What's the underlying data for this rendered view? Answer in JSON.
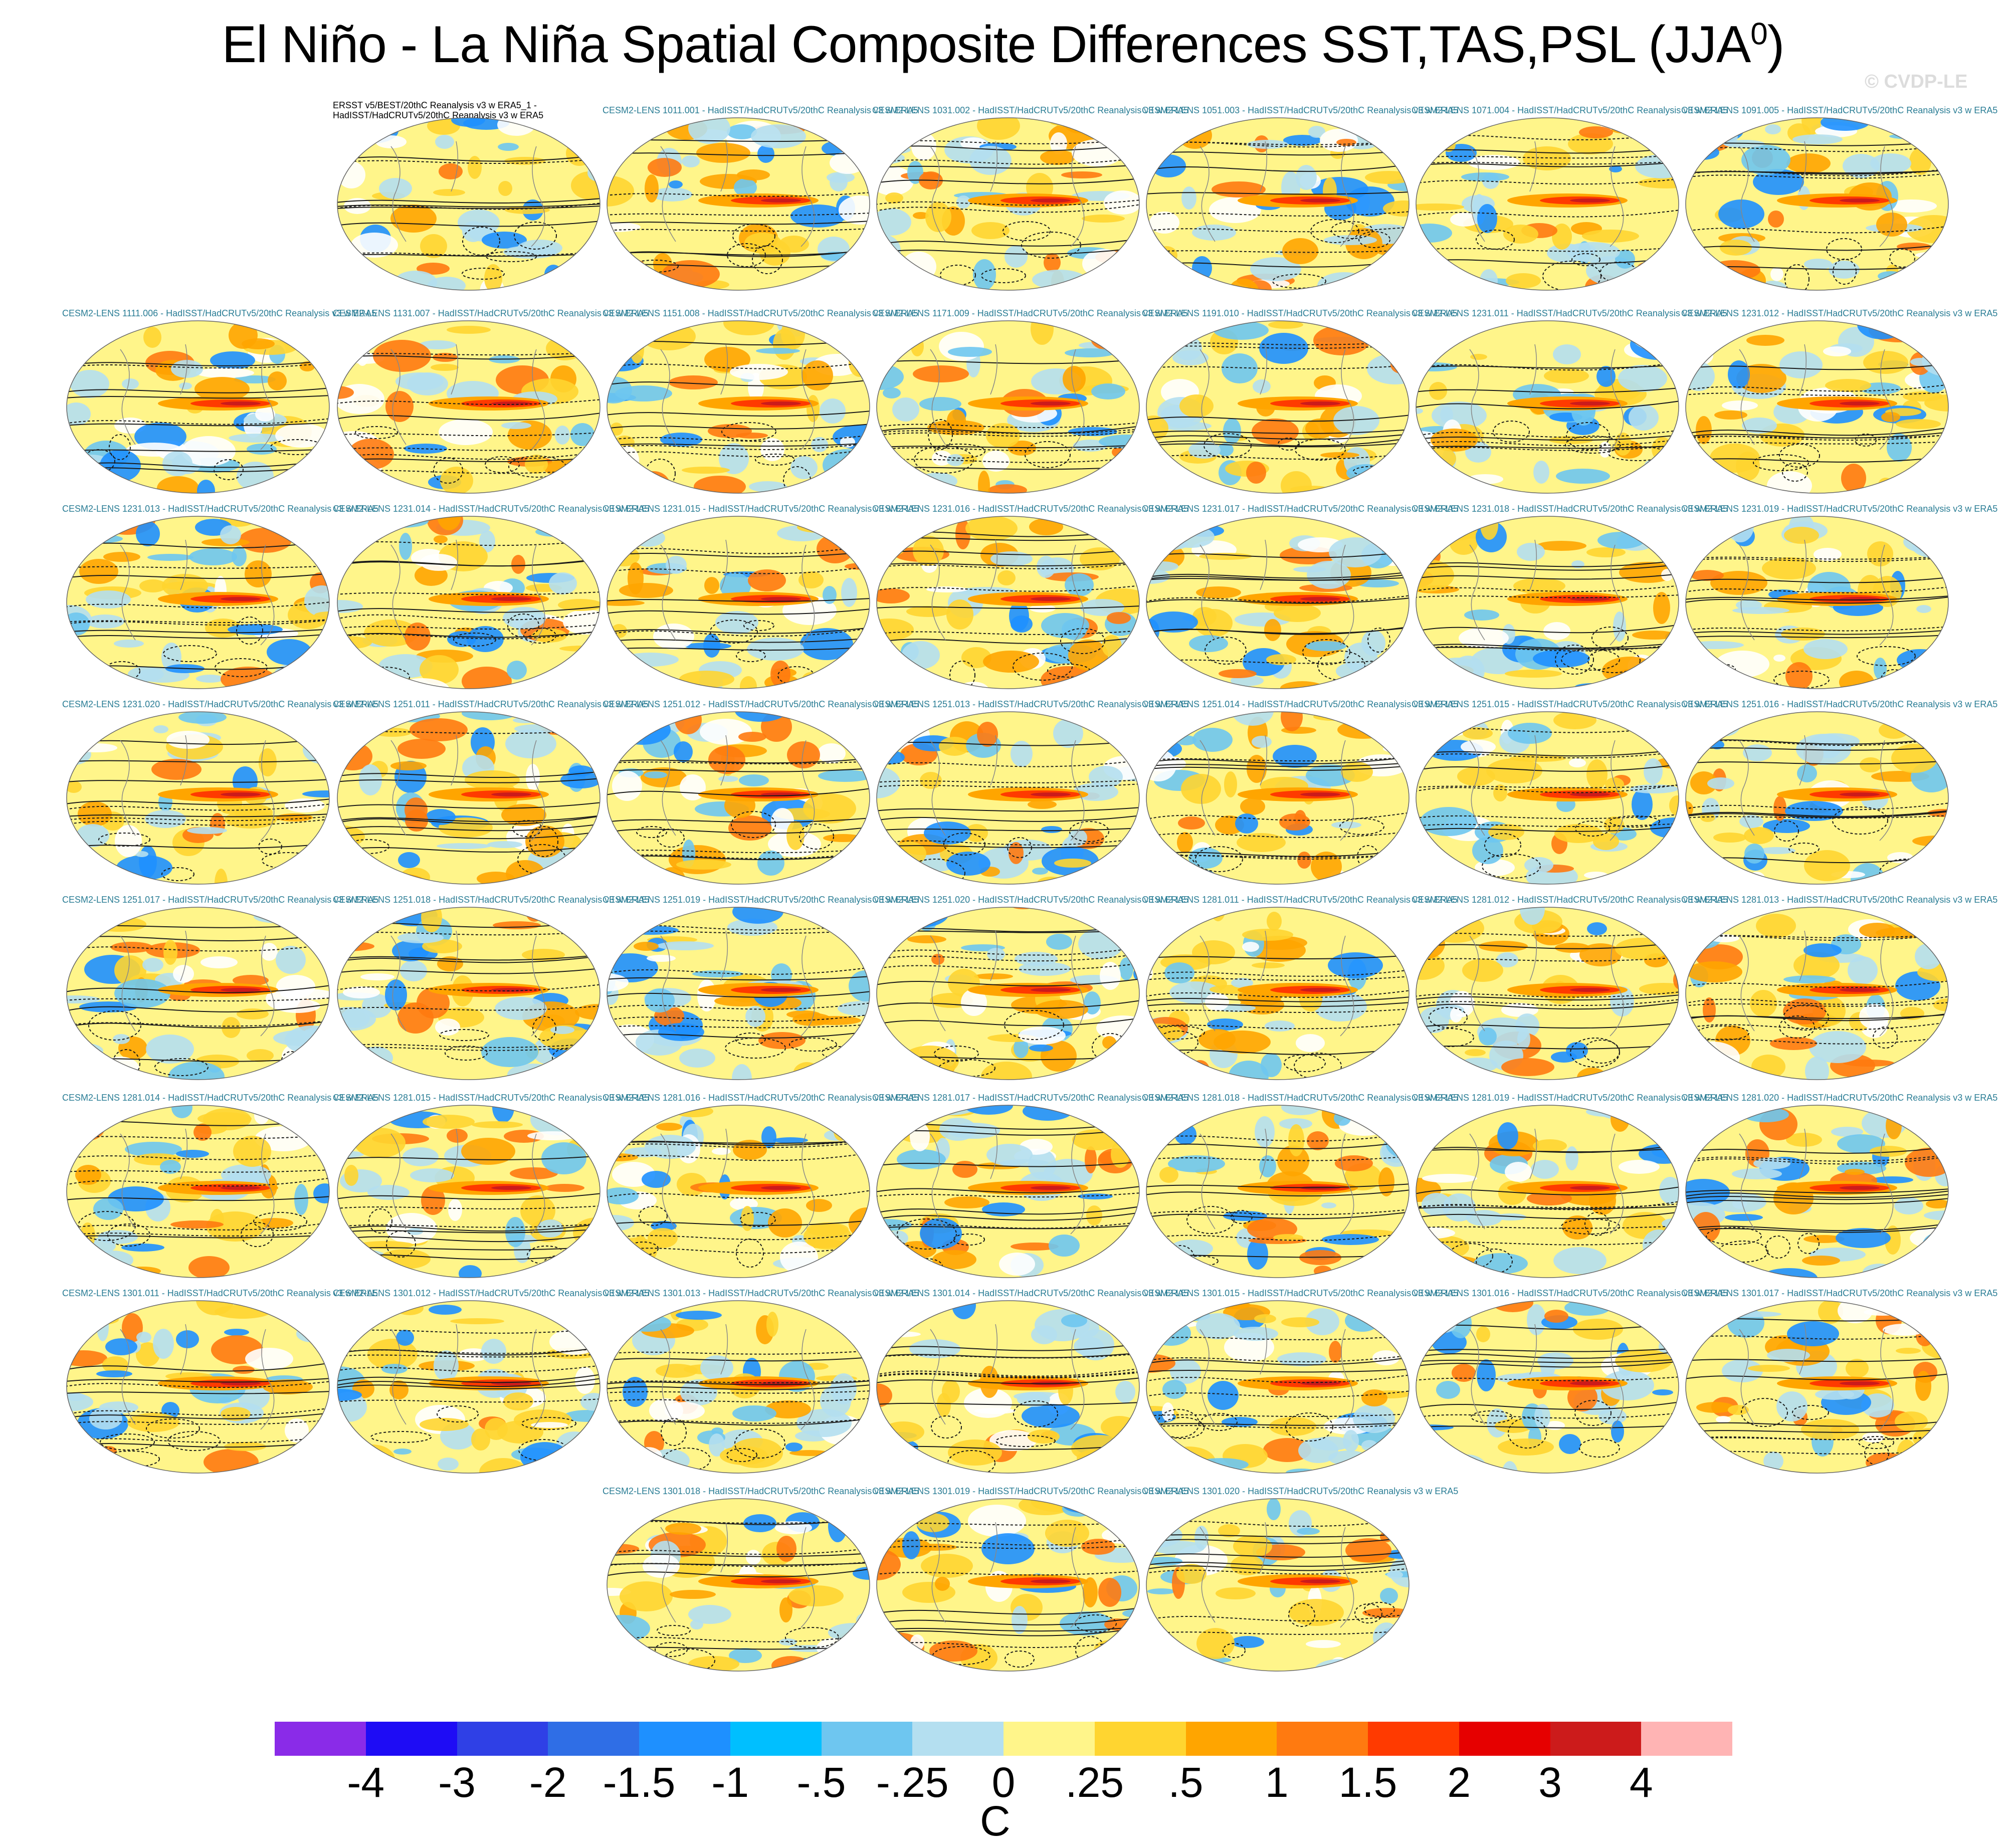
{
  "title": "El Niño - La Niña Spatial Composite Differences SST,TAS,PSL (JJA",
  "title_superscript": "0",
  "title_close": ")",
  "watermark": "© CVDP-LE",
  "panels": [
    {
      "label": "ERSST v5/BEST/20thC Reanalysis v3 w ERA5_1 - HadISST/HadCRUTv5/20thC Reanalysis v3 w ERA5",
      "obs": true
    },
    {
      "label": "CESM2-LENS 1011.001 - HadISST/HadCRUTv5/20thC Reanalysis v3 w ERA5"
    },
    {
      "label": "CESM2-LENS 1031.002 - HadISST/HadCRUTv5/20thC Reanalysis v3 w ERA5"
    },
    {
      "label": "CESM2-LENS 1051.003 - HadISST/HadCRUTv5/20thC Reanalysis v3 w ERA5"
    },
    {
      "label": "CESM2-LENS 1071.004 - HadISST/HadCRUTv5/20thC Reanalysis v3 w ERA5"
    },
    {
      "label": "CESM2-LENS 1091.005 - HadISST/HadCRUTv5/20thC Reanalysis v3 w ERA5"
    },
    {
      "label": "CESM2-LENS 1111.006 - HadISST/HadCRUTv5/20thC Reanalysis v3 w ERA5"
    },
    {
      "label": "CESM2-LENS 1131.007 - HadISST/HadCRUTv5/20thC Reanalysis v3 w ERA5"
    },
    {
      "label": "CESM2-LENS 1151.008 - HadISST/HadCRUTv5/20thC Reanalysis v3 w ERA5"
    },
    {
      "label": "CESM2-LENS 1171.009 - HadISST/HadCRUTv5/20thC Reanalysis v3 w ERA5"
    },
    {
      "label": "CESM2-LENS 1191.010 - HadISST/HadCRUTv5/20thC Reanalysis v3 w ERA5"
    },
    {
      "label": "CESM2-LENS 1231.011 - HadISST/HadCRUTv5/20thC Reanalysis v3 w ERA5"
    },
    {
      "label": "CESM2-LENS 1231.012 - HadISST/HadCRUTv5/20thC Reanalysis v3 w ERA5"
    },
    {
      "label": "CESM2-LENS 1231.013 - HadISST/HadCRUTv5/20thC Reanalysis v3 w ERA5"
    },
    {
      "label": "CESM2-LENS 1231.014 - HadISST/HadCRUTv5/20thC Reanalysis v3 w ERA5"
    },
    {
      "label": "CESM2-LENS 1231.015 - HadISST/HadCRUTv5/20thC Reanalysis v3 w ERA5"
    },
    {
      "label": "CESM2-LENS 1231.016 - HadISST/HadCRUTv5/20thC Reanalysis v3 w ERA5"
    },
    {
      "label": "CESM2-LENS 1231.017 - HadISST/HadCRUTv5/20thC Reanalysis v3 w ERA5"
    },
    {
      "label": "CESM2-LENS 1231.018 - HadISST/HadCRUTv5/20thC Reanalysis v3 w ERA5"
    },
    {
      "label": "CESM2-LENS 1231.019 - HadISST/HadCRUTv5/20thC Reanalysis v3 w ERA5"
    },
    {
      "label": "CESM2-LENS 1231.020 - HadISST/HadCRUTv5/20thC Reanalysis v3 w ERA5"
    },
    {
      "label": "CESM2-LENS 1251.011 - HadISST/HadCRUTv5/20thC Reanalysis v3 w ERA5"
    },
    {
      "label": "CESM2-LENS 1251.012 - HadISST/HadCRUTv5/20thC Reanalysis v3 w ERA5"
    },
    {
      "label": "CESM2-LENS 1251.013 - HadISST/HadCRUTv5/20thC Reanalysis v3 w ERA5"
    },
    {
      "label": "CESM2-LENS 1251.014 - HadISST/HadCRUTv5/20thC Reanalysis v3 w ERA5"
    },
    {
      "label": "CESM2-LENS 1251.015 - HadISST/HadCRUTv5/20thC Reanalysis v3 w ERA5"
    },
    {
      "label": "CESM2-LENS 1251.016 - HadISST/HadCRUTv5/20thC Reanalysis v3 w ERA5"
    },
    {
      "label": "CESM2-LENS 1251.017 - HadISST/HadCRUTv5/20thC Reanalysis v3 w ERA5"
    },
    {
      "label": "CESM2-LENS 1251.018 - HadISST/HadCRUTv5/20thC Reanalysis v3 w ERA5"
    },
    {
      "label": "CESM2-LENS 1251.019 - HadISST/HadCRUTv5/20thC Reanalysis v3 w ERA5"
    },
    {
      "label": "CESM2-LENS 1251.020 - HadISST/HadCRUTv5/20thC Reanalysis v3 w ERA5"
    },
    {
      "label": "CESM2-LENS 1281.011 - HadISST/HadCRUTv5/20thC Reanalysis v3 w ERA5"
    },
    {
      "label": "CESM2-LENS 1281.012 - HadISST/HadCRUTv5/20thC Reanalysis v3 w ERA5"
    },
    {
      "label": "CESM2-LENS 1281.013 - HadISST/HadCRUTv5/20thC Reanalysis v3 w ERA5"
    },
    {
      "label": "CESM2-LENS 1281.014 - HadISST/HadCRUTv5/20thC Reanalysis v3 w ERA5"
    },
    {
      "label": "CESM2-LENS 1281.015 - HadISST/HadCRUTv5/20thC Reanalysis v3 w ERA5"
    },
    {
      "label": "CESM2-LENS 1281.016 - HadISST/HadCRUTv5/20thC Reanalysis v3 w ERA5"
    },
    {
      "label": "CESM2-LENS 1281.017 - HadISST/HadCRUTv5/20thC Reanalysis v3 w ERA5"
    },
    {
      "label": "CESM2-LENS 1281.018 - HadISST/HadCRUTv5/20thC Reanalysis v3 w ERA5"
    },
    {
      "label": "CESM2-LENS 1281.019 - HadISST/HadCRUTv5/20thC Reanalysis v3 w ERA5"
    },
    {
      "label": "CESM2-LENS 1281.020 - HadISST/HadCRUTv5/20thC Reanalysis v3 w ERA5"
    },
    {
      "label": "CESM2-LENS 1301.011 - HadISST/HadCRUTv5/20thC Reanalysis v3 w ERA5"
    },
    {
      "label": "CESM2-LENS 1301.012 - HadISST/HadCRUTv5/20thC Reanalysis v3 w ERA5"
    },
    {
      "label": "CESM2-LENS 1301.013 - HadISST/HadCRUTv5/20thC Reanalysis v3 w ERA5"
    },
    {
      "label": "CESM2-LENS 1301.014 - HadISST/HadCRUTv5/20thC Reanalysis v3 w ERA5"
    },
    {
      "label": "CESM2-LENS 1301.015 - HadISST/HadCRUTv5/20thC Reanalysis v3 w ERA5"
    },
    {
      "label": "CESM2-LENS 1301.016 - HadISST/HadCRUTv5/20thC Reanalysis v3 w ERA5"
    },
    {
      "label": "CESM2-LENS 1301.017 - HadISST/HadCRUTv5/20thC Reanalysis v3 w ERA5"
    },
    {
      "label": "CESM2-LENS 1301.018 - HadISST/HadCRUTv5/20thC Reanalysis v3 w ERA5"
    },
    {
      "label": "CESM2-LENS 1301.019 - HadISST/HadCRUTv5/20thC Reanalysis v3 w ERA5"
    },
    {
      "label": "CESM2-LENS 1301.020 - HadISST/HadCRUTv5/20thC Reanalysis v3 w ERA5"
    }
  ],
  "colorbar": {
    "colors": [
      "#8a2be8",
      "#1e0cf5",
      "#2f40e6",
      "#2f6ee6",
      "#1e90ff",
      "#00bfff",
      "#6ec6f0",
      "#b4dff0",
      "#fff58a",
      "#ffd530",
      "#ffa500",
      "#ff7a10",
      "#ff3a00",
      "#e60000",
      "#cc1b1b",
      "#ffb4b4"
    ],
    "ticks": [
      "-4",
      "-3",
      "-2",
      "-1.5",
      "-1",
      "-.5",
      "-.25",
      "0",
      ".25",
      ".5",
      "1",
      "1.5",
      "2",
      "3",
      "4"
    ],
    "units": "C"
  }
}
